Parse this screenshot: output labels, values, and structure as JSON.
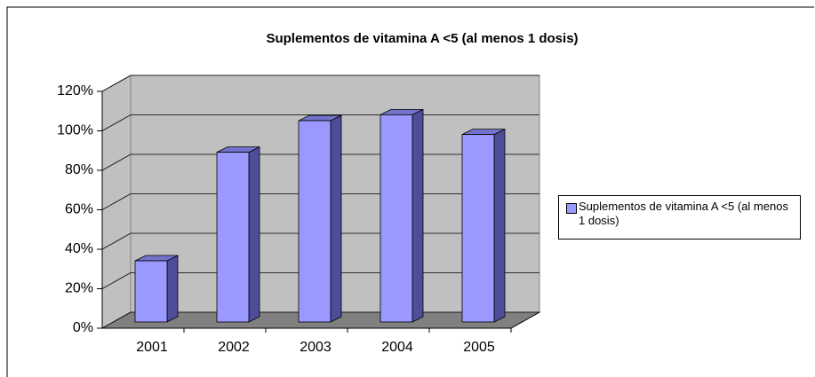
{
  "chart_data": {
    "type": "bar3d",
    "title": "Suplementos de vitamina A <5 (al menos 1 dosis)",
    "categories": [
      "2001",
      "2002",
      "2003",
      "2004",
      "2005"
    ],
    "series": [
      {
        "name": "Suplementos de vitamina A <5 (al menos 1 dosis)",
        "color": "#9999ff",
        "values": [
          31,
          86,
          102,
          105,
          95
        ]
      }
    ],
    "ylim": [
      0,
      120
    ],
    "yticks": [
      {
        "value": 0,
        "label": "0%"
      },
      {
        "value": 20,
        "label": "20%"
      },
      {
        "value": 40,
        "label": "40%"
      },
      {
        "value": 60,
        "label": "60%"
      },
      {
        "value": 80,
        "label": "80%"
      },
      {
        "value": 100,
        "label": "100%"
      },
      {
        "value": 120,
        "label": "120%"
      }
    ],
    "grid": true,
    "legend": "right"
  }
}
